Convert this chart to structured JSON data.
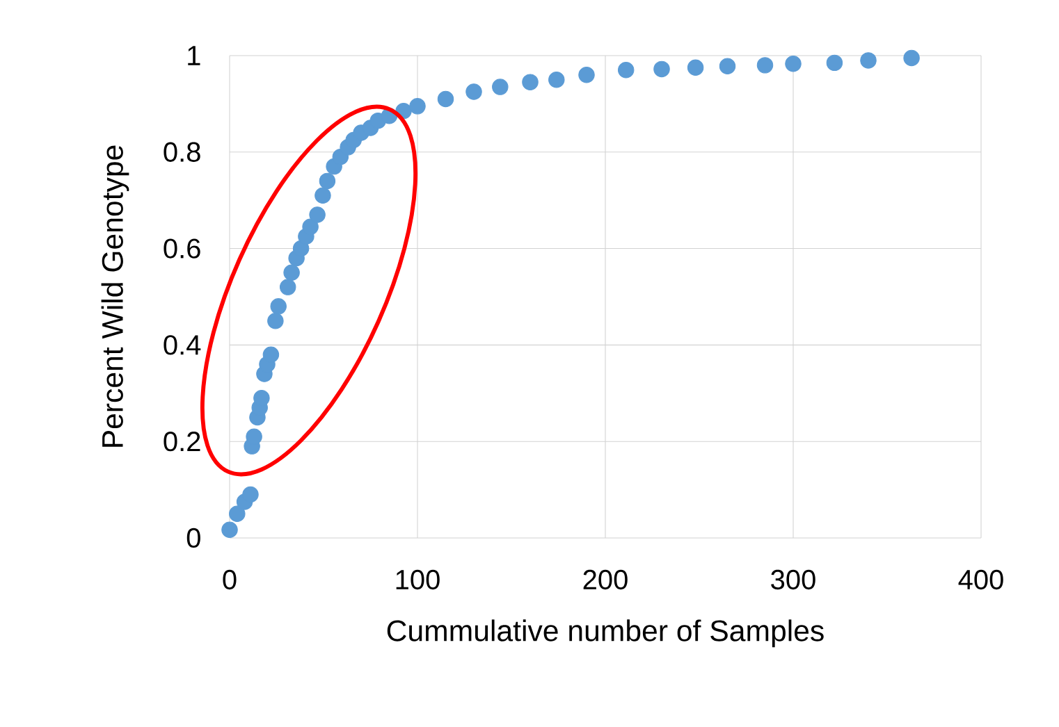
{
  "chart_data": {
    "type": "scatter",
    "xlabel": "Cummulative number of Samples",
    "ylabel": "Percent Wild Genotype",
    "x": [
      0,
      4,
      8,
      11.1,
      11.9,
      13,
      14.8,
      16,
      17,
      18.5,
      20,
      22,
      24.4,
      26,
      31,
      33,
      35.6,
      38,
      40.7,
      43,
      46.7,
      49.6,
      52,
      55.6,
      59,
      63,
      66,
      70,
      75,
      79,
      85,
      92.6,
      100,
      115,
      130,
      144,
      160,
      174,
      190,
      211,
      230,
      248,
      265,
      285,
      300,
      322,
      340,
      363
    ],
    "values": [
      0.017,
      0.05,
      0.075,
      0.09,
      0.19,
      0.21,
      0.25,
      0.27,
      0.29,
      0.34,
      0.36,
      0.38,
      0.45,
      0.48,
      0.52,
      0.55,
      0.58,
      0.6,
      0.625,
      0.645,
      0.67,
      0.71,
      0.74,
      0.77,
      0.79,
      0.81,
      0.825,
      0.84,
      0.85,
      0.865,
      0.875,
      0.885,
      0.895,
      0.91,
      0.925,
      0.935,
      0.945,
      0.95,
      0.96,
      0.97,
      0.972,
      0.975,
      0.978,
      0.98,
      0.983,
      0.985,
      0.99,
      0.995
    ],
    "color": "#5b9bd5",
    "marker": "circle",
    "grid": true,
    "xlim": [
      0,
      400
    ],
    "xticks": [
      0,
      100,
      200,
      300,
      400
    ],
    "ylim": [
      0,
      1
    ],
    "yticks": [
      0,
      0.2,
      0.4,
      0.6,
      0.8,
      1
    ]
  }
}
